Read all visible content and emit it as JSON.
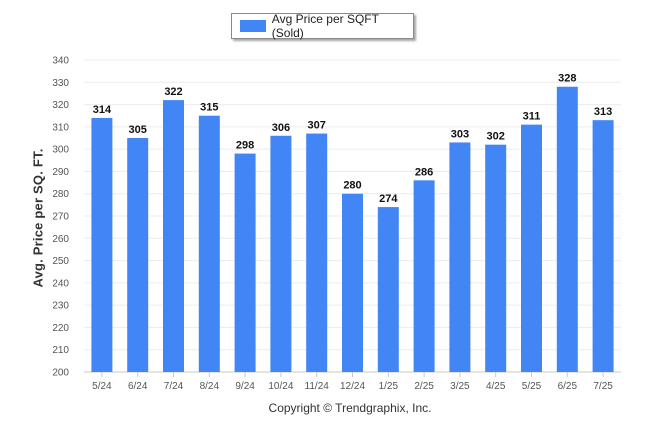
{
  "legend": {
    "label": "Avg Price per SQFT (Sold)"
  },
  "footer": {
    "copyright": "Copyright © Trendgraphix, Inc."
  },
  "chart_data": {
    "type": "bar",
    "title": "",
    "xlabel": "",
    "ylabel": "Avg. Price per SQ. FT.",
    "ylim": [
      200,
      340
    ],
    "ytick_step": 10,
    "grid": true,
    "legend_position": "top-center",
    "bar_color": "#4285f4",
    "categories": [
      "5/24",
      "6/24",
      "7/24",
      "8/24",
      "9/24",
      "10/24",
      "11/24",
      "12/24",
      "1/25",
      "2/25",
      "3/25",
      "4/25",
      "5/25",
      "6/25",
      "7/25"
    ],
    "series": [
      {
        "name": "Avg Price per SQFT (Sold)",
        "values": [
          314,
          305,
          322,
          315,
          298,
          306,
          307,
          280,
          274,
          286,
          303,
          302,
          311,
          328,
          313
        ]
      }
    ]
  }
}
